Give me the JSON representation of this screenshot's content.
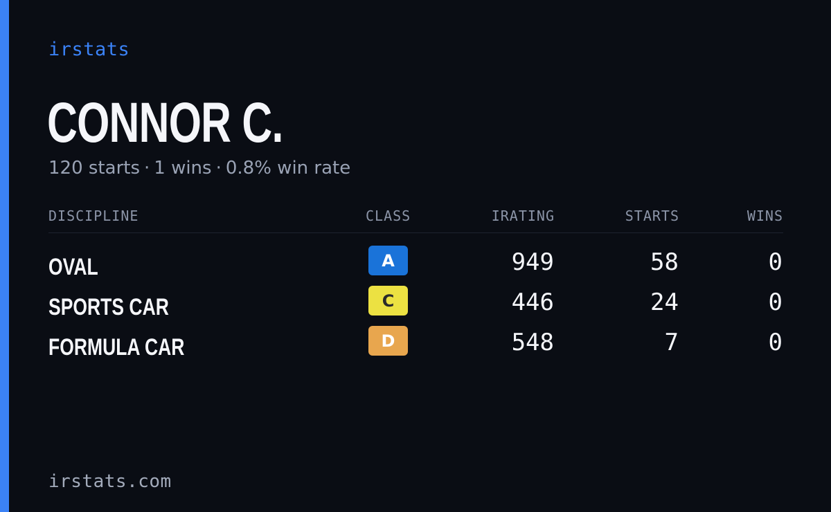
{
  "brand": "irstats",
  "player": {
    "name": "CONNOR C.",
    "starts_summary": "120 starts",
    "wins_summary": "1 wins",
    "win_rate_summary": "0.8% win rate",
    "separator": "·"
  },
  "table": {
    "headers": {
      "discipline": "DISCIPLINE",
      "class": "CLASS",
      "irating": "IRATING",
      "starts": "STARTS",
      "wins": "WINS"
    },
    "rows": [
      {
        "discipline": "OVAL",
        "class": "A",
        "class_color": "#1a73d9",
        "class_text_color": "#ffffff",
        "irating": "949",
        "starts": "58",
        "wins": "0"
      },
      {
        "discipline": "SPORTS CAR",
        "class": "C",
        "class_color": "#ece142",
        "class_text_color": "#2a2a2a",
        "irating": "446",
        "starts": "24",
        "wins": "0"
      },
      {
        "discipline": "FORMULA CAR",
        "class": "D",
        "class_color": "#e8a64e",
        "class_text_color": "#ffffff",
        "irating": "548",
        "starts": "7",
        "wins": "0"
      }
    ]
  },
  "footer": {
    "domain": "irstats.com"
  },
  "colors": {
    "accent": "#3b82f6",
    "background": "#0a0d14"
  }
}
